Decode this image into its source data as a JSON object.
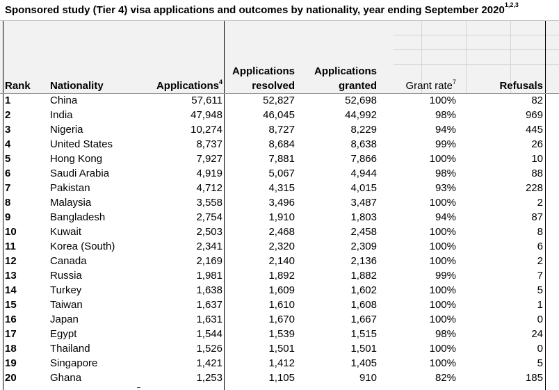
{
  "title": {
    "text": "Sponsored study (Tier 4) visa applications and outcomes by nationality, year ending September 2020",
    "footnote": "1,2,3"
  },
  "headers": {
    "rank": "Rank",
    "nationality": "Nationality",
    "applications": "Applications",
    "applications_note": "4",
    "resolved_line1": "Applications",
    "resolved_line2": "resolved",
    "granted_line1": "Applications",
    "granted_line2": "granted",
    "grant_rate": "Grant rate",
    "grant_rate_note": "7",
    "refusals": "Refusals"
  },
  "rows": [
    {
      "rank": "1",
      "nationality": "China",
      "applications": "57,611",
      "resolved": "52,827",
      "granted": "52,698",
      "grant_rate": "100%",
      "refusals": "82"
    },
    {
      "rank": "2",
      "nationality": "India",
      "applications": "47,948",
      "resolved": "46,045",
      "granted": "44,992",
      "grant_rate": "98%",
      "refusals": "969"
    },
    {
      "rank": "3",
      "nationality": "Nigeria",
      "applications": "10,274",
      "resolved": "8,727",
      "granted": "8,229",
      "grant_rate": "94%",
      "refusals": "445"
    },
    {
      "rank": "4",
      "nationality": "United States",
      "applications": "8,737",
      "resolved": "8,684",
      "granted": "8,638",
      "grant_rate": "99%",
      "refusals": "26"
    },
    {
      "rank": "5",
      "nationality": "Hong Kong",
      "applications": "7,927",
      "resolved": "7,881",
      "granted": "7,866",
      "grant_rate": "100%",
      "refusals": "10"
    },
    {
      "rank": "6",
      "nationality": "Saudi Arabia",
      "applications": "4,919",
      "resolved": "5,067",
      "granted": "4,944",
      "grant_rate": "98%",
      "refusals": "88"
    },
    {
      "rank": "7",
      "nationality": "Pakistan",
      "applications": "4,712",
      "resolved": "4,315",
      "granted": "4,015",
      "grant_rate": "93%",
      "refusals": "228"
    },
    {
      "rank": "8",
      "nationality": "Malaysia",
      "applications": "3,558",
      "resolved": "3,496",
      "granted": "3,487",
      "grant_rate": "100%",
      "refusals": "2"
    },
    {
      "rank": "9",
      "nationality": "Bangladesh",
      "applications": "2,754",
      "resolved": "1,910",
      "granted": "1,803",
      "grant_rate": "94%",
      "refusals": "87"
    },
    {
      "rank": "10",
      "nationality": "Kuwait",
      "applications": "2,503",
      "resolved": "2,468",
      "granted": "2,458",
      "grant_rate": "100%",
      "refusals": "8"
    },
    {
      "rank": "11",
      "nationality": "Korea (South)",
      "applications": "2,341",
      "resolved": "2,320",
      "granted": "2,309",
      "grant_rate": "100%",
      "refusals": "6"
    },
    {
      "rank": "12",
      "nationality": "Canada",
      "applications": "2,169",
      "resolved": "2,140",
      "granted": "2,136",
      "grant_rate": "100%",
      "refusals": "2"
    },
    {
      "rank": "13",
      "nationality": "Russia",
      "applications": "1,981",
      "resolved": "1,892",
      "granted": "1,882",
      "grant_rate": "99%",
      "refusals": "7"
    },
    {
      "rank": "14",
      "nationality": "Turkey",
      "applications": "1,638",
      "resolved": "1,609",
      "granted": "1,602",
      "grant_rate": "100%",
      "refusals": "5"
    },
    {
      "rank": "15",
      "nationality": "Taiwan",
      "applications": "1,637",
      "resolved": "1,610",
      "granted": "1,608",
      "grant_rate": "100%",
      "refusals": "1"
    },
    {
      "rank": "16",
      "nationality": "Japan",
      "applications": "1,631",
      "resolved": "1,670",
      "granted": "1,667",
      "grant_rate": "100%",
      "refusals": "0"
    },
    {
      "rank": "17",
      "nationality": "Egypt",
      "applications": "1,544",
      "resolved": "1,539",
      "granted": "1,515",
      "grant_rate": "98%",
      "refusals": "24"
    },
    {
      "rank": "18",
      "nationality": "Thailand",
      "applications": "1,526",
      "resolved": "1,501",
      "granted": "1,501",
      "grant_rate": "100%",
      "refusals": "0"
    },
    {
      "rank": "19",
      "nationality": "Singapore",
      "applications": "1,421",
      "resolved": "1,412",
      "granted": "1,405",
      "grant_rate": "100%",
      "refusals": "5"
    },
    {
      "rank": "20",
      "nationality": "Ghana",
      "applications": "1,253",
      "resolved": "1,105",
      "granted": "910",
      "grant_rate": "82%",
      "refusals": "185"
    }
  ]
}
